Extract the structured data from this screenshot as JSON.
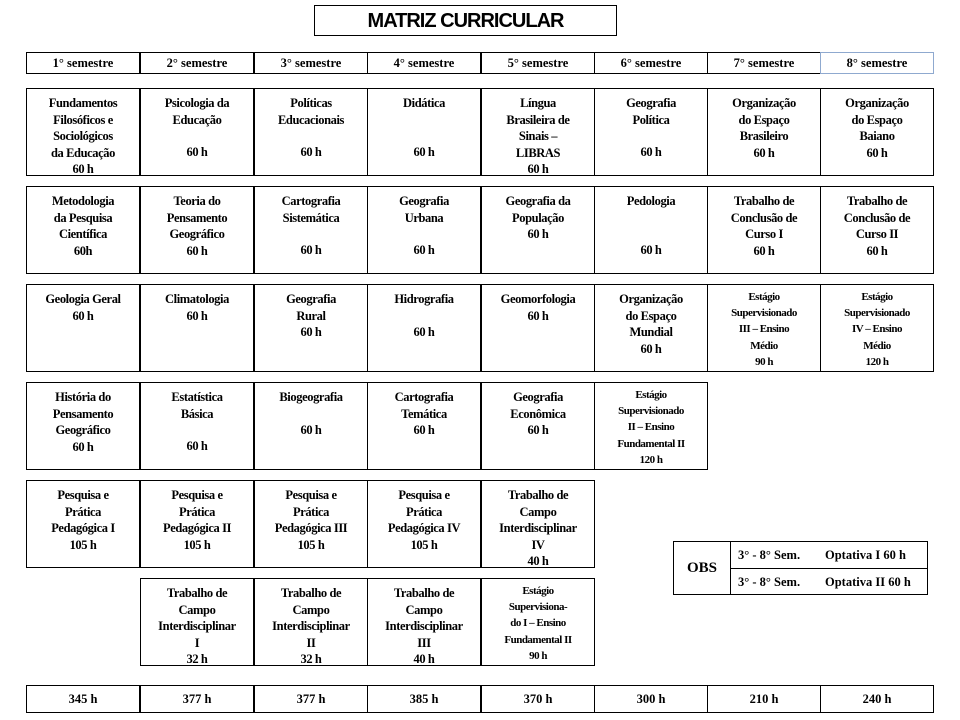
{
  "title": "MATRIZ CURRICULAR",
  "semesters": [
    {
      "label": "1°  semestre",
      "total": "345 h",
      "courses": [
        {
          "lines": [
            "Fundamentos",
            "Filosóficos e",
            "Sociológicos",
            "da Educação",
            "60 h"
          ]
        },
        {
          "lines": [
            "Metodologia",
            "da Pesquisa",
            "Científica",
            "60h"
          ]
        },
        {
          "lines": [
            "Geologia Geral",
            "60 h"
          ]
        },
        {
          "lines": [
            "História do",
            "Pensamento",
            "Geográfico",
            "60 h"
          ]
        },
        {
          "lines": [
            "Pesquisa e",
            "Prática",
            "Pedagógica I",
            "105 h"
          ]
        },
        null
      ]
    },
    {
      "label": "2°  semestre",
      "total": "377 h",
      "courses": [
        {
          "lines": [
            "Psicologia da",
            "Educação",
            "",
            "60 h"
          ]
        },
        {
          "lines": [
            "Teoria do",
            "Pensamento",
            "Geográfico",
            "60 h"
          ]
        },
        {
          "lines": [
            "Climatologia",
            "60 h"
          ]
        },
        {
          "lines": [
            "Estatística",
            "Básica",
            "",
            "60 h"
          ]
        },
        {
          "lines": [
            "Pesquisa e",
            "Prática",
            "Pedagógica II",
            "105 h"
          ]
        },
        {
          "lines": [
            "Trabalho de",
            "Campo",
            "Interdisciplinar",
            "I",
            "32 h"
          ]
        }
      ]
    },
    {
      "label": "3°  semestre",
      "total": "377 h",
      "courses": [
        {
          "lines": [
            "Políticas",
            "Educacionais",
            "",
            "60 h"
          ]
        },
        {
          "lines": [
            "Cartografia",
            "Sistemática",
            "",
            "60 h"
          ]
        },
        {
          "lines": [
            "Geografia",
            "Rural",
            "60 h"
          ]
        },
        {
          "lines": [
            "Biogeografia",
            "",
            "60 h"
          ]
        },
        {
          "lines": [
            "Pesquisa e",
            "Prática",
            "Pedagógica III",
            "105 h"
          ]
        },
        {
          "lines": [
            "Trabalho de",
            "Campo",
            "Interdisciplinar",
            "II",
            "32 h"
          ]
        }
      ]
    },
    {
      "label": "4°  semestre",
      "total": "385 h",
      "courses": [
        {
          "lines": [
            "Didática",
            "",
            "",
            "60 h"
          ]
        },
        {
          "lines": [
            "Geografia",
            "Urbana",
            "",
            "60 h"
          ]
        },
        {
          "lines": [
            "Hidrografia",
            "",
            "60 h"
          ]
        },
        {
          "lines": [
            "Cartografia",
            "Temática",
            "60 h"
          ]
        },
        {
          "lines": [
            "Pesquisa e",
            "Prática",
            "Pedagógica IV",
            "105 h"
          ]
        },
        {
          "lines": [
            "Trabalho de",
            "Campo",
            "Interdisciplinar",
            "III",
            "40 h"
          ]
        }
      ]
    },
    {
      "label": "5°  semestre",
      "total": "370 h",
      "courses": [
        {
          "lines": [
            "Língua",
            "Brasileira de",
            "Sinais –",
            "LIBRAS",
            "60 h"
          ]
        },
        {
          "lines": [
            "Geografia da",
            "População",
            "60 h"
          ]
        },
        {
          "lines": [
            "Geomorfologia",
            "60 h"
          ]
        },
        {
          "lines": [
            "Geografia",
            "Econômica",
            "60 h"
          ]
        },
        {
          "lines": [
            "Trabalho de",
            "Campo",
            "Interdisciplinar",
            "IV",
            "40 h"
          ]
        },
        {
          "small": true,
          "lines": [
            "Estágio",
            "Supervisiona-",
            "do I – Ensino",
            "Fundamental II",
            "90 h"
          ]
        }
      ]
    },
    {
      "label": "6°  semestre",
      "total": "300 h",
      "courses": [
        {
          "lines": [
            "Geografia",
            "Política",
            "",
            "60 h"
          ]
        },
        {
          "lines": [
            "Pedologia",
            "",
            "",
            "60 h"
          ]
        },
        {
          "lines": [
            "Organização",
            "do Espaço",
            "Mundial",
            "60 h"
          ]
        },
        {
          "small": true,
          "lines": [
            "Estágio",
            "Supervisionado",
            "II – Ensino",
            "Fundamental II",
            "120 h"
          ]
        },
        null,
        null
      ]
    },
    {
      "label": "7°  semestre",
      "total": "210 h",
      "courses": [
        {
          "lines": [
            "Organização",
            "do Espaço",
            "Brasileiro",
            "60 h"
          ]
        },
        {
          "lines": [
            "Trabalho de",
            "Conclusão de",
            "Curso I",
            "60 h"
          ]
        },
        {
          "small": true,
          "lines": [
            "Estágio",
            "Supervisionado",
            "III – Ensino",
            "Médio",
            "90 h"
          ]
        },
        null,
        null,
        null
      ]
    },
    {
      "label": "8°  semestre",
      "total": "240 h",
      "courses": [
        {
          "lines": [
            "Organização",
            "do Espaço",
            "Baiano",
            "60 h"
          ]
        },
        {
          "lines": [
            "Trabalho de",
            "Conclusão de",
            "Curso II",
            "60 h"
          ]
        },
        {
          "small": true,
          "lines": [
            "Estágio",
            "Supervisionado",
            "IV – Ensino",
            "Médio",
            "120 h"
          ]
        },
        null,
        null,
        null
      ]
    }
  ],
  "obs": {
    "label": "OBS",
    "rows": [
      {
        "range": "3° - 8°  Sem.",
        "elective": "Optativa I  60 h"
      },
      {
        "range": "3° - 8°  Sem.",
        "elective": "Optativa II 60 h"
      }
    ]
  }
}
